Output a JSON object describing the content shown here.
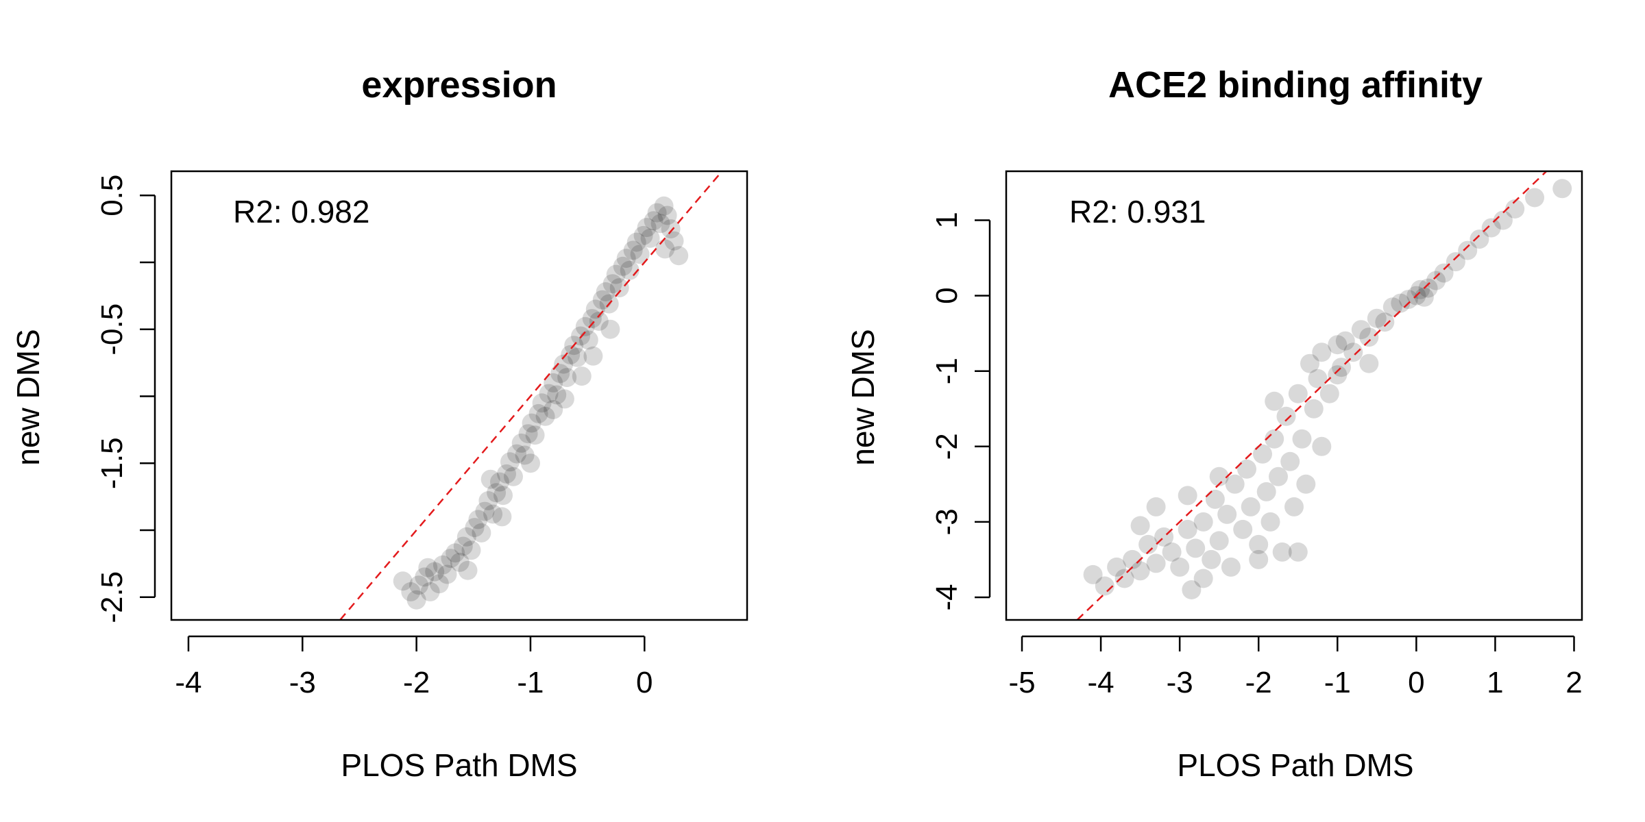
{
  "chart_data": [
    {
      "type": "scatter",
      "title": "expression",
      "xlabel": "PLOS Path DMS",
      "ylabel": "new DMS",
      "xlim": [
        -4.15,
        0.9
      ],
      "ylim": [
        -2.67,
        0.68
      ],
      "xticks": [
        -4,
        -3,
        -2,
        -1,
        0
      ],
      "xtick_labels": [
        "-4",
        "-3",
        "-2",
        "-1",
        "0"
      ],
      "yticks": [
        -2.5,
        -2.0,
        -1.5,
        -1.0,
        -0.5,
        0.0,
        0.5
      ],
      "ytick_labels": [
        "-2.5",
        "",
        "-1.5",
        "",
        "-0.5",
        "",
        "0.5"
      ],
      "annotation": "R2: 0.982",
      "reference_line": {
        "type": "identity",
        "color": "#e31a1c",
        "style": "dashed"
      },
      "point_color": "#000000",
      "point_opacity": 0.15,
      "grid": false,
      "points": [
        [
          -2.12,
          -2.38
        ],
        [
          -2.05,
          -2.46
        ],
        [
          -2.0,
          -2.52
        ],
        [
          -1.98,
          -2.41
        ],
        [
          -1.93,
          -2.35
        ],
        [
          -1.88,
          -2.46
        ],
        [
          -1.84,
          -2.31
        ],
        [
          -1.8,
          -2.4
        ],
        [
          -1.77,
          -2.26
        ],
        [
          -1.73,
          -2.33
        ],
        [
          -1.7,
          -2.21
        ],
        [
          -1.66,
          -2.17
        ],
        [
          -1.62,
          -2.24
        ],
        [
          -1.59,
          -2.12
        ],
        [
          -1.56,
          -2.05
        ],
        [
          -1.52,
          -2.15
        ],
        [
          -1.49,
          -1.98
        ],
        [
          -1.46,
          -1.92
        ],
        [
          -1.43,
          -2.02
        ],
        [
          -1.4,
          -1.86
        ],
        [
          -1.37,
          -1.78
        ],
        [
          -1.33,
          -1.88
        ],
        [
          -1.3,
          -1.72
        ],
        [
          -1.27,
          -1.64
        ],
        [
          -1.24,
          -1.74
        ],
        [
          -1.21,
          -1.58
        ],
        [
          -1.18,
          -1.49
        ],
        [
          -1.15,
          -1.6
        ],
        [
          -1.12,
          -1.43
        ],
        [
          -1.08,
          -1.35
        ],
        [
          -1.05,
          -1.44
        ],
        [
          -1.02,
          -1.28
        ],
        [
          -0.99,
          -1.2
        ],
        [
          -0.96,
          -1.29
        ],
        [
          -0.93,
          -1.13
        ],
        [
          -0.9,
          -1.05
        ],
        [
          -0.87,
          -1.15
        ],
        [
          -0.84,
          -0.98
        ],
        [
          -0.8,
          -0.9
        ],
        [
          -0.77,
          -0.99
        ],
        [
          -0.74,
          -0.83
        ],
        [
          -0.71,
          -0.76
        ],
        [
          -0.68,
          -0.86
        ],
        [
          -0.65,
          -0.69
        ],
        [
          -0.62,
          -0.62
        ],
        [
          -0.59,
          -0.71
        ],
        [
          -0.56,
          -0.55
        ],
        [
          -0.52,
          -0.48
        ],
        [
          -0.49,
          -0.58
        ],
        [
          -0.46,
          -0.42
        ],
        [
          -0.43,
          -0.35
        ],
        [
          -0.4,
          -0.44
        ],
        [
          -0.37,
          -0.28
        ],
        [
          -0.34,
          -0.22
        ],
        [
          -0.31,
          -0.31
        ],
        [
          -0.28,
          -0.16
        ],
        [
          -0.25,
          -0.09
        ],
        [
          -0.22,
          -0.19
        ],
        [
          -0.19,
          -0.03
        ],
        [
          -0.16,
          0.03
        ],
        [
          -0.13,
          -0.06
        ],
        [
          -0.1,
          0.09
        ],
        [
          -0.07,
          0.15
        ],
        [
          -0.04,
          0.06
        ],
        [
          -0.01,
          0.2
        ],
        [
          0.02,
          0.26
        ],
        [
          0.05,
          0.18
        ],
        [
          0.08,
          0.31
        ],
        [
          0.11,
          0.37
        ],
        [
          0.14,
          0.29
        ],
        [
          0.17,
          0.42
        ],
        [
          0.2,
          0.35
        ],
        [
          0.23,
          0.25
        ],
        [
          0.26,
          0.16
        ],
        [
          0.3,
          0.05
        ],
        [
          0.18,
          0.1
        ],
        [
          -0.3,
          -0.5
        ],
        [
          -0.55,
          -0.85
        ],
        [
          -0.8,
          -1.1
        ],
        [
          -1.0,
          -1.5
        ],
        [
          -1.25,
          -1.9
        ],
        [
          -1.55,
          -2.3
        ],
        [
          -0.7,
          -1.02
        ],
        [
          -0.45,
          -0.7
        ],
        [
          -1.9,
          -2.28
        ],
        [
          -1.35,
          -1.62
        ]
      ]
    },
    {
      "type": "scatter",
      "title": "ACE2 binding affinity",
      "xlabel": "PLOS Path DMS",
      "ylabel": "new DMS",
      "xlim": [
        -5.2,
        2.1
      ],
      "ylim": [
        -4.3,
        1.65
      ],
      "xticks": [
        -5,
        -4,
        -3,
        -2,
        -1,
        0,
        1,
        2
      ],
      "xtick_labels": [
        "-5",
        "-4",
        "-3",
        "-2",
        "-1",
        "0",
        "1",
        "2"
      ],
      "yticks": [
        -4,
        -3,
        -2,
        -1,
        0,
        1
      ],
      "ytick_labels": [
        "-4",
        "-3",
        "-2",
        "-1",
        "0",
        "1"
      ],
      "annotation": "R2: 0.931",
      "reference_line": {
        "type": "identity",
        "color": "#e31a1c",
        "style": "dashed"
      },
      "point_color": "#000000",
      "point_opacity": 0.15,
      "grid": false,
      "points": [
        [
          -3.95,
          -3.85
        ],
        [
          -3.8,
          -3.6
        ],
        [
          -3.7,
          -3.75
        ],
        [
          -3.6,
          -3.5
        ],
        [
          -3.5,
          -3.65
        ],
        [
          -3.4,
          -3.3
        ],
        [
          -3.3,
          -3.55
        ],
        [
          -3.2,
          -3.2
        ],
        [
          -3.1,
          -3.4
        ],
        [
          -3.0,
          -3.6
        ],
        [
          -2.9,
          -3.1
        ],
        [
          -2.85,
          -3.9
        ],
        [
          -2.8,
          -3.35
        ],
        [
          -2.7,
          -3.0
        ],
        [
          -2.6,
          -3.5
        ],
        [
          -2.55,
          -2.7
        ],
        [
          -2.5,
          -3.25
        ],
        [
          -2.4,
          -2.9
        ],
        [
          -2.35,
          -3.6
        ],
        [
          -2.3,
          -2.5
        ],
        [
          -2.2,
          -3.1
        ],
        [
          -2.15,
          -2.3
        ],
        [
          -2.1,
          -2.8
        ],
        [
          -2.0,
          -3.3
        ],
        [
          -1.95,
          -2.1
        ],
        [
          -1.9,
          -2.6
        ],
        [
          -1.85,
          -3.0
        ],
        [
          -1.8,
          -1.9
        ],
        [
          -1.75,
          -2.4
        ],
        [
          -1.7,
          -3.4
        ],
        [
          -1.65,
          -1.6
        ],
        [
          -1.6,
          -2.2
        ],
        [
          -1.55,
          -2.8
        ],
        [
          -1.5,
          -1.3
        ],
        [
          -1.45,
          -1.9
        ],
        [
          -1.4,
          -2.5
        ],
        [
          -1.35,
          -0.9
        ],
        [
          -1.3,
          -1.5
        ],
        [
          -1.25,
          -1.1
        ],
        [
          -1.2,
          -0.75
        ],
        [
          -1.1,
          -1.3
        ],
        [
          -1.0,
          -0.65
        ],
        [
          -0.95,
          -0.95
        ],
        [
          -0.9,
          -0.6
        ],
        [
          -0.8,
          -0.75
        ],
        [
          -0.7,
          -0.45
        ],
        [
          -0.6,
          -0.55
        ],
        [
          -0.5,
          -0.3
        ],
        [
          -0.4,
          -0.35
        ],
        [
          -0.3,
          -0.15
        ],
        [
          -0.2,
          -0.1
        ],
        [
          -0.1,
          -0.05
        ],
        [
          0.0,
          0.0
        ],
        [
          0.05,
          0.08
        ],
        [
          0.1,
          -0.02
        ],
        [
          0.15,
          0.1
        ],
        [
          0.25,
          0.2
        ],
        [
          0.35,
          0.3
        ],
        [
          0.5,
          0.45
        ],
        [
          0.65,
          0.6
        ],
        [
          0.8,
          0.75
        ],
        [
          0.95,
          0.9
        ],
        [
          1.1,
          1.0
        ],
        [
          1.25,
          1.15
        ],
        [
          1.5,
          1.3
        ],
        [
          1.85,
          1.42
        ],
        [
          -3.3,
          -2.8
        ],
        [
          -2.9,
          -2.65
        ],
        [
          -2.0,
          -3.5
        ],
        [
          -1.5,
          -3.4
        ],
        [
          -4.1,
          -3.7
        ],
        [
          -2.5,
          -2.4
        ],
        [
          -1.8,
          -1.4
        ],
        [
          -1.2,
          -2.0
        ],
        [
          -3.5,
          -3.05
        ],
        [
          -0.6,
          -0.9
        ],
        [
          -2.7,
          -3.75
        ],
        [
          -1.0,
          -1.05
        ]
      ]
    }
  ]
}
